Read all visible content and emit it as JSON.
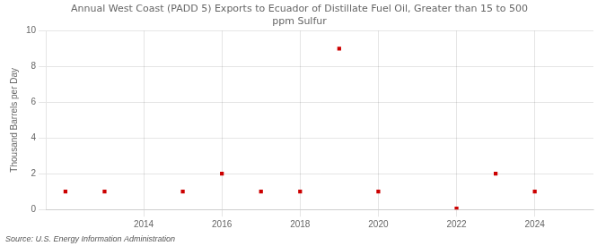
{
  "chart_data": {
    "type": "scatter",
    "title": "Annual West Coast (PADD 5) Exports to Ecuador of Distillate Fuel Oil, Greater than 15 to 500\nppm Sulfur",
    "ylabel": "Thousand Barrels per Day",
    "annotations": [
      "Source: U.S. Energy Information Administration"
    ],
    "x": [
      2012,
      2013,
      2015,
      2016,
      2017,
      2018,
      2019,
      2020,
      2022,
      2023,
      2024
    ],
    "values": [
      1,
      1,
      1,
      2,
      1,
      1,
      9,
      1,
      0.05,
      2,
      1
    ],
    "color": "#cc0000",
    "marker": "square",
    "xlim": [
      2011.5,
      2025.5
    ],
    "ylim": [
      0,
      10
    ],
    "xticks": [
      2014,
      2016,
      2018,
      2020,
      2022,
      2024
    ],
    "yticks": [
      0,
      2,
      4,
      6,
      8,
      10
    ],
    "grid": true
  }
}
